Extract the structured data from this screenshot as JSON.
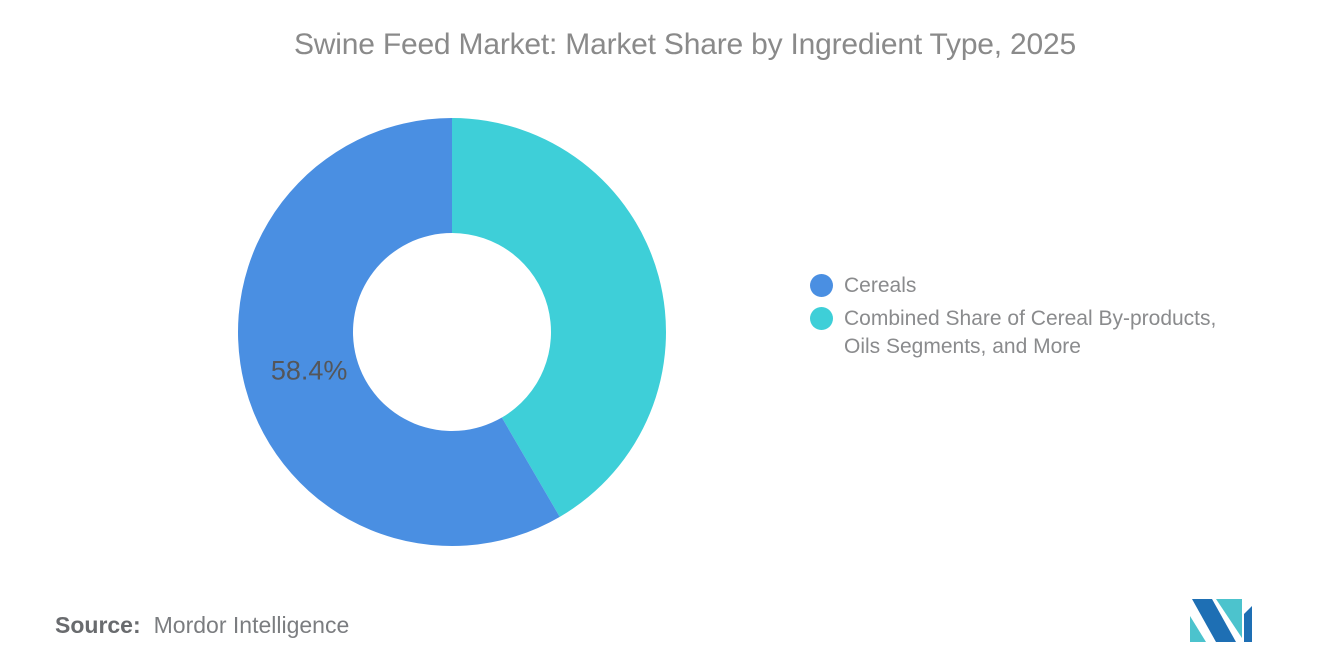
{
  "title": "Swine Feed Market: Market Share by Ingredient Type, 2025",
  "source": {
    "label": "Source:",
    "value": "Mordor Intelligence"
  },
  "logo": {
    "name": "mordor-intelligence-logo",
    "blue": "#1e6fb4",
    "teal": "#4cc3cd"
  },
  "chart_data": {
    "type": "pie",
    "donut": true,
    "title": "Swine Feed Market: Market Share by Ingredient Type, 2025",
    "unit": "%",
    "start_angle_deg": 0,
    "direction": "clockwise",
    "legend_position": "right",
    "slices": [
      {
        "label": "Cereals",
        "value": 58.4,
        "color": "#4a8fe2",
        "data_label": "58.4%"
      },
      {
        "label": "Combined Share of Cereal By-products, Oils Segments, and More",
        "value": 41.6,
        "color": "#3ecfd8",
        "data_label": ""
      }
    ]
  }
}
